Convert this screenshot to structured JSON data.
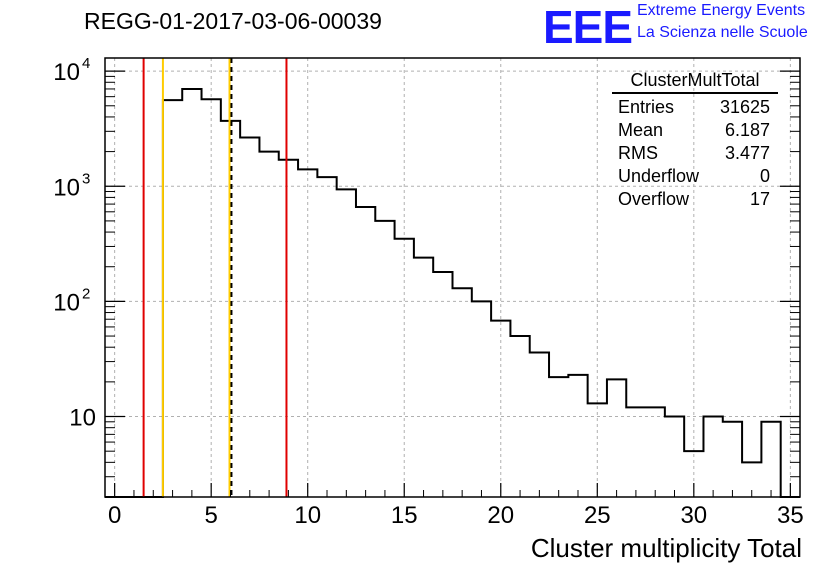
{
  "title": "REGG-01-2017-03-06-00039",
  "logo": {
    "mark": "EEE",
    "line1": "Extreme Energy Events",
    "line2": "La Scienza nelle Scuole",
    "color": "#1a1aff"
  },
  "stats": {
    "name": "ClusterMultTotal",
    "rows": [
      {
        "label": "Entries",
        "value": "31625"
      },
      {
        "label": "Mean",
        "value": "6.187"
      },
      {
        "label": "RMS",
        "value": "3.477"
      },
      {
        "label": "Underflow",
        "value": "0"
      },
      {
        "label": "Overflow",
        "value": "17"
      }
    ]
  },
  "chart_data": {
    "type": "histogram",
    "xlabel": "Cluster multiplicity Total",
    "ylabel": "",
    "xlim": [
      -0.5,
      35.5
    ],
    "ylim": [
      2,
      13000
    ],
    "yscale": "log",
    "grid": true,
    "xticks": [
      0,
      5,
      10,
      15,
      20,
      25,
      30,
      35
    ],
    "yticks": [
      {
        "value": 10,
        "label": "10"
      },
      {
        "value": 100,
        "label": "10",
        "exp": "2"
      },
      {
        "value": 1000,
        "label": "10",
        "exp": "3"
      },
      {
        "value": 10000,
        "label": "10",
        "exp": "4"
      }
    ],
    "bin_width": 1,
    "bin_start": -0.5,
    "counts": [
      0,
      0,
      0,
      5600,
      7000,
      5700,
      3700,
      2650,
      2000,
      1700,
      1400,
      1200,
      940,
      660,
      500,
      350,
      240,
      180,
      130,
      100,
      68,
      50,
      36,
      22,
      23,
      13,
      21,
      12,
      12,
      10,
      5,
      10,
      9,
      4,
      9,
      0
    ],
    "vertical_lines": [
      {
        "x": 1.5,
        "color": "#e00000",
        "style": "solid"
      },
      {
        "x": 2.5,
        "color": "#ffcc00",
        "style": "solid"
      },
      {
        "x": 5.95,
        "color": "#ffcc00",
        "style": "solid"
      },
      {
        "x": 6.05,
        "color": "#000000",
        "style": "dashed"
      },
      {
        "x": 8.9,
        "color": "#e00000",
        "style": "solid"
      }
    ],
    "line_color": "#000000"
  }
}
